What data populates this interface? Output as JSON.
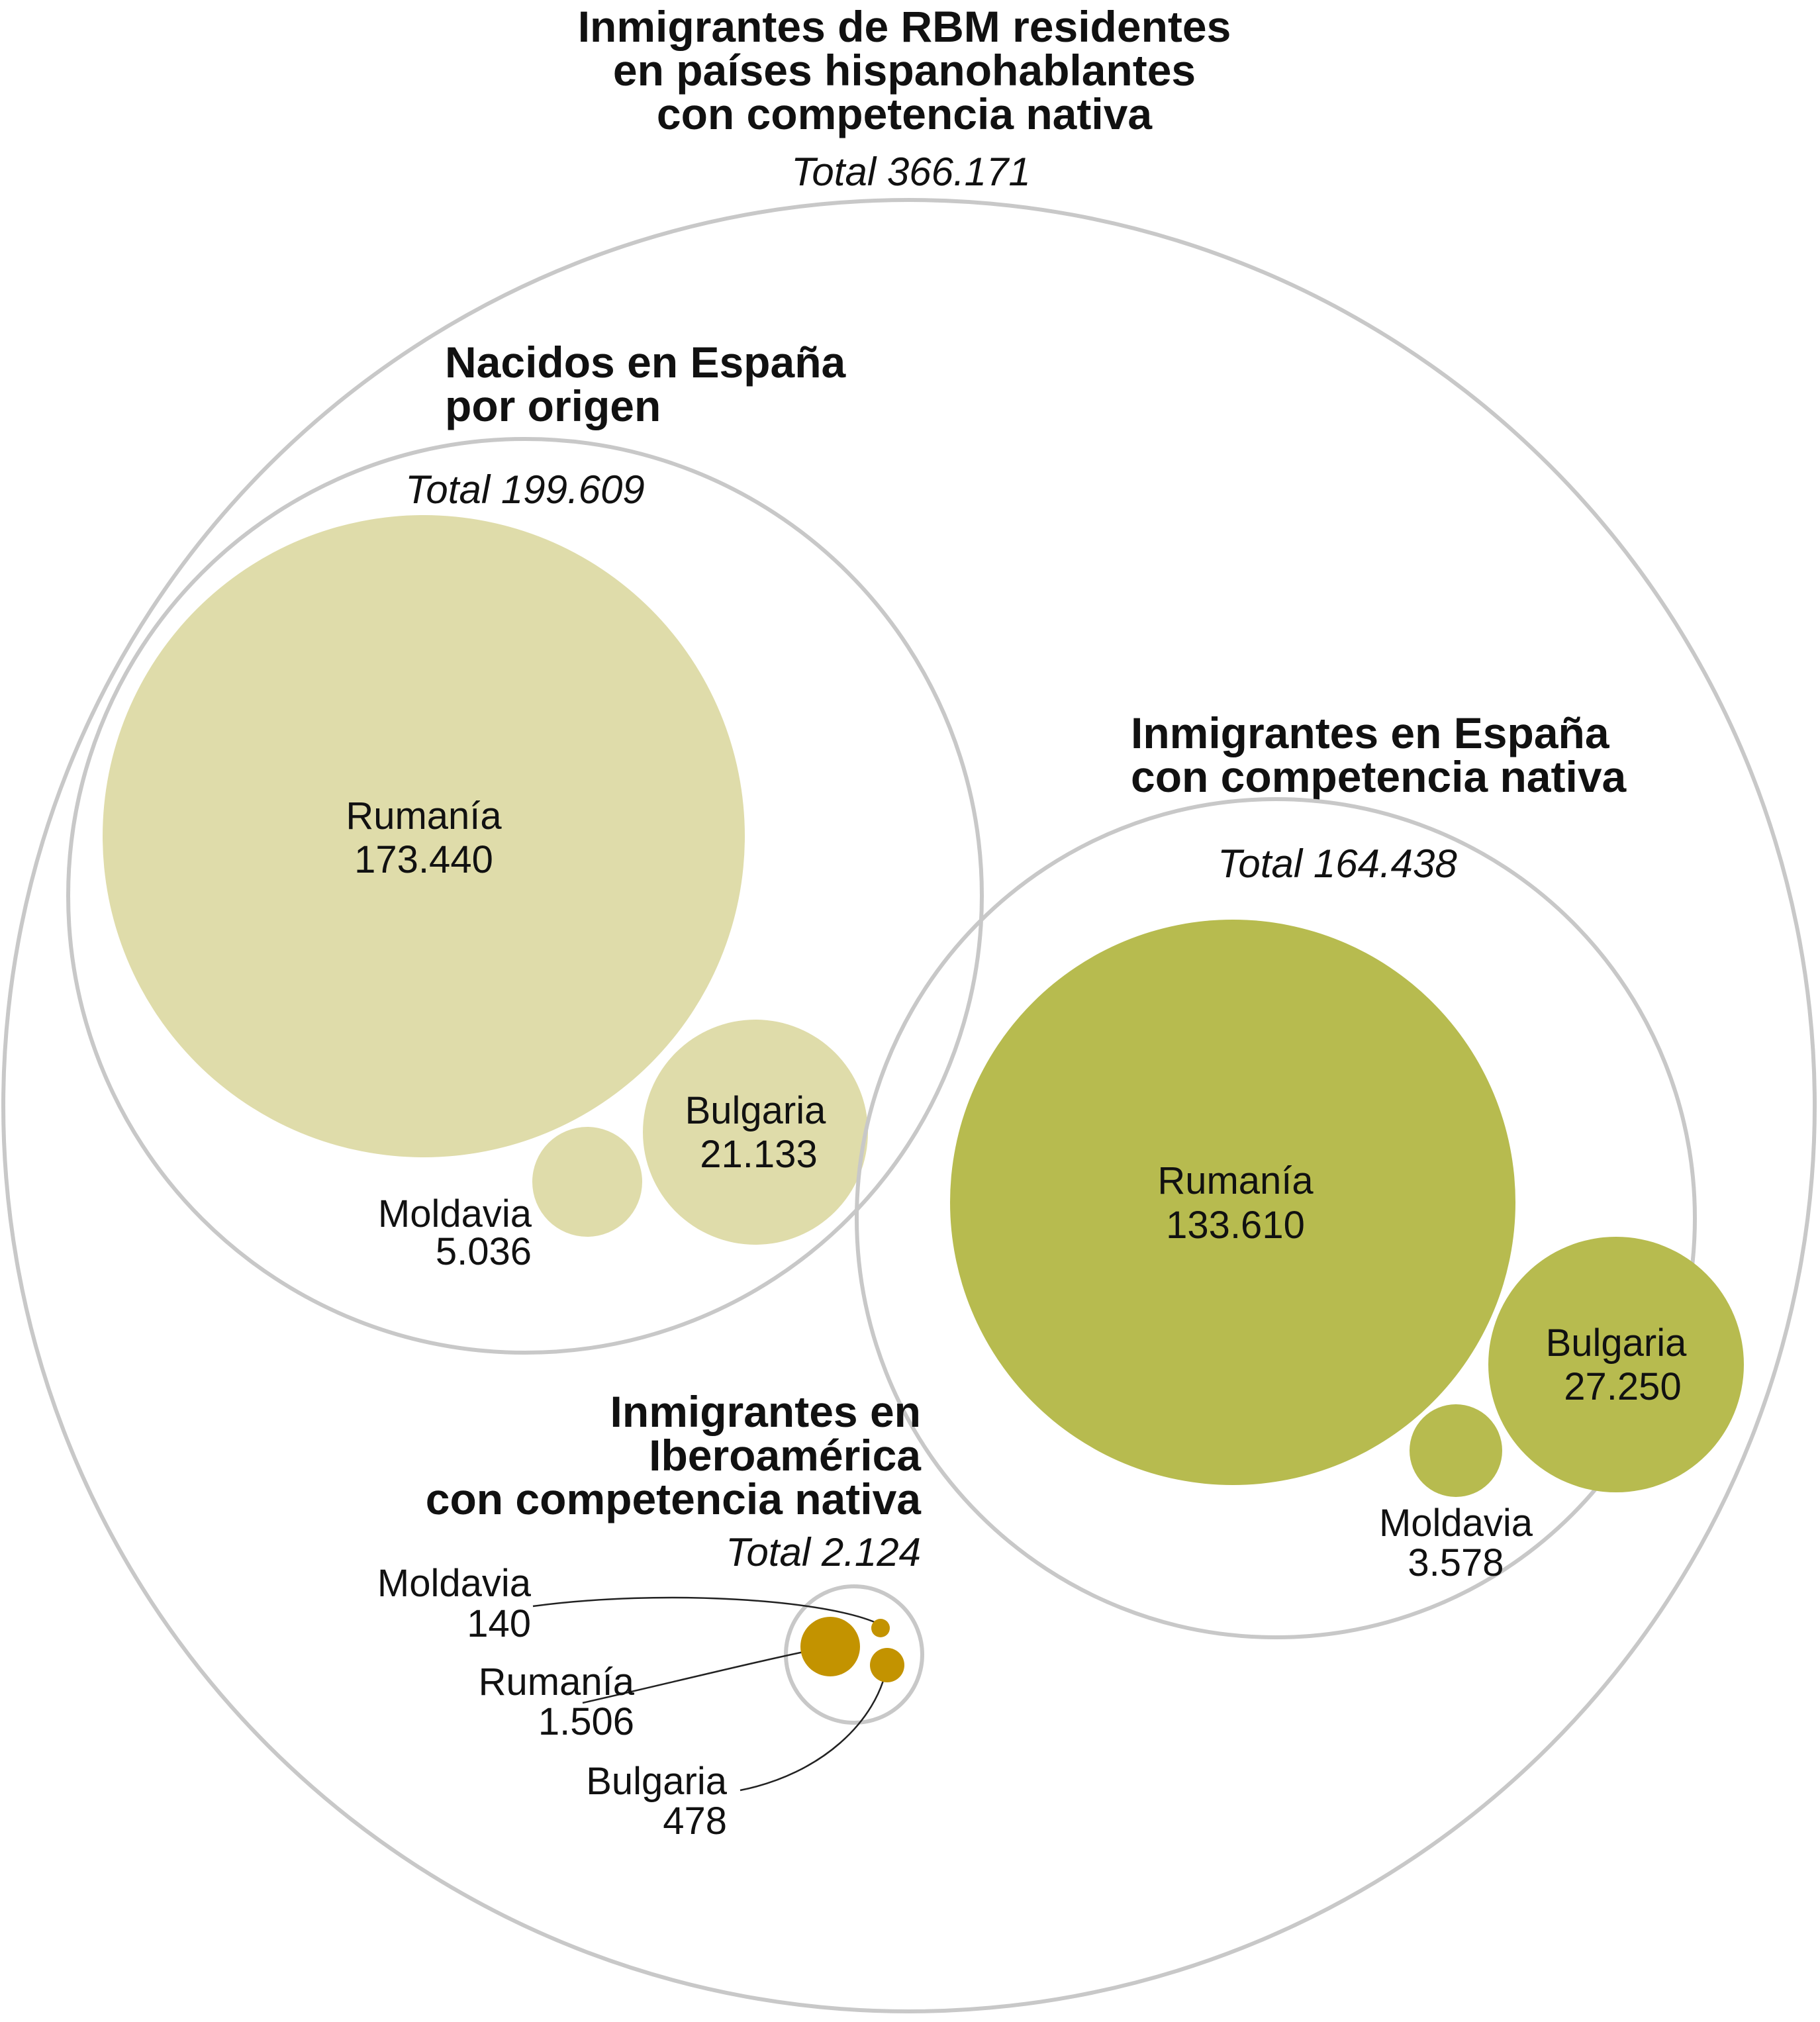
{
  "chart_data": {
    "type": "bubble",
    "title": [
      "Inmigrantes de RBM residentes",
      "en países hispanohablantes",
      "con competencia nativa"
    ],
    "total_label": "Total 366.171",
    "total": 366171,
    "groups": [
      {
        "id": "espana-origen",
        "title": [
          "Nacidos en España",
          "por origen"
        ],
        "total_label": "Total 199.609",
        "total": 199609,
        "color": "#dfdcaa",
        "items": [
          {
            "name": "Rumanía",
            "value": 173440,
            "value_label": "173.440"
          },
          {
            "name": "Bulgaria",
            "value": 21133,
            "value_label": "21.133"
          },
          {
            "name": "Moldavia",
            "value": 5036,
            "value_label": "5.036"
          }
        ]
      },
      {
        "id": "espana-inmigrantes",
        "title": [
          "Inmigrantes en España",
          "con competencia nativa"
        ],
        "total_label": "Total 164.438",
        "total": 164438,
        "color": "#b7bb4f",
        "items": [
          {
            "name": "Rumanía",
            "value": 133610,
            "value_label": "133.610"
          },
          {
            "name": "Bulgaria",
            "value": 27250,
            "value_label": "27.250"
          },
          {
            "name": "Moldavia",
            "value": 3578,
            "value_label": "3.578"
          }
        ]
      },
      {
        "id": "iberoamerica",
        "title": [
          "Inmigrantes en",
          "Iberoamérica",
          "con competencia nativa"
        ],
        "total_label": "Total 2.124",
        "total": 2124,
        "color": "#c39300",
        "items": [
          {
            "name": "Moldavia",
            "value": 140,
            "value_label": "140"
          },
          {
            "name": "Rumanía",
            "value": 1506,
            "value_label": "1.506"
          },
          {
            "name": "Bulgaria",
            "value": 478,
            "value_label": "478"
          }
        ]
      }
    ]
  }
}
